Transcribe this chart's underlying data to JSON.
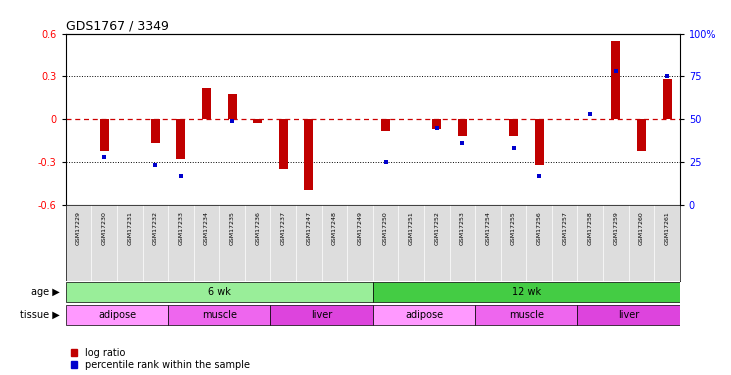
{
  "title": "GDS1767 / 3349",
  "samples": [
    "GSM17229",
    "GSM17230",
    "GSM17231",
    "GSM17232",
    "GSM17233",
    "GSM17234",
    "GSM17235",
    "GSM17236",
    "GSM17237",
    "GSM17247",
    "GSM17248",
    "GSM17249",
    "GSM17250",
    "GSM17251",
    "GSM17252",
    "GSM17253",
    "GSM17254",
    "GSM17255",
    "GSM17256",
    "GSM17257",
    "GSM17258",
    "GSM17259",
    "GSM17260",
    "GSM17261"
  ],
  "log_ratio": [
    0.0,
    -0.22,
    0.0,
    -0.17,
    -0.28,
    0.22,
    0.18,
    -0.03,
    -0.35,
    -0.5,
    0.0,
    0.0,
    -0.08,
    0.0,
    -0.07,
    -0.12,
    0.0,
    -0.12,
    -0.32,
    0.0,
    0.0,
    0.55,
    -0.22,
    0.28
  ],
  "percentile_rank": [
    null,
    28,
    null,
    23,
    17,
    null,
    49,
    null,
    null,
    null,
    null,
    null,
    25,
    null,
    45,
    36,
    null,
    33,
    17,
    null,
    53,
    78,
    null,
    75
  ],
  "ylim_left": [
    -0.6,
    0.6
  ],
  "ylim_right": [
    0,
    100
  ],
  "yticks_left": [
    -0.6,
    -0.3,
    0.0,
    0.3,
    0.6
  ],
  "yticks_right": [
    0,
    25,
    50,
    75,
    100
  ],
  "bar_color": "#C00000",
  "dot_color": "#0000CC",
  "zero_line_color": "#CC0000",
  "dotted_line_color": "#000000",
  "age_groups": [
    {
      "label": "6 wk",
      "start": 0,
      "end": 12,
      "color": "#99EE99"
    },
    {
      "label": "12 wk",
      "start": 12,
      "end": 24,
      "color": "#44CC44"
    }
  ],
  "tissue_groups": [
    {
      "label": "adipose",
      "start": 0,
      "end": 4,
      "color": "#FF99FF"
    },
    {
      "label": "muscle",
      "start": 4,
      "end": 8,
      "color": "#EE66EE"
    },
    {
      "label": "liver",
      "start": 8,
      "end": 12,
      "color": "#DD44DD"
    },
    {
      "label": "adipose",
      "start": 12,
      "end": 16,
      "color": "#FF99FF"
    },
    {
      "label": "muscle",
      "start": 16,
      "end": 20,
      "color": "#EE66EE"
    },
    {
      "label": "liver",
      "start": 20,
      "end": 24,
      "color": "#DD44DD"
    }
  ],
  "background_color": "#FFFFFF",
  "label_bg_color": "#DDDDDD",
  "legend_log_ratio_label": "log ratio",
  "legend_percentile_label": "percentile rank within the sample",
  "age_label": "age",
  "tissue_label": "tissue"
}
